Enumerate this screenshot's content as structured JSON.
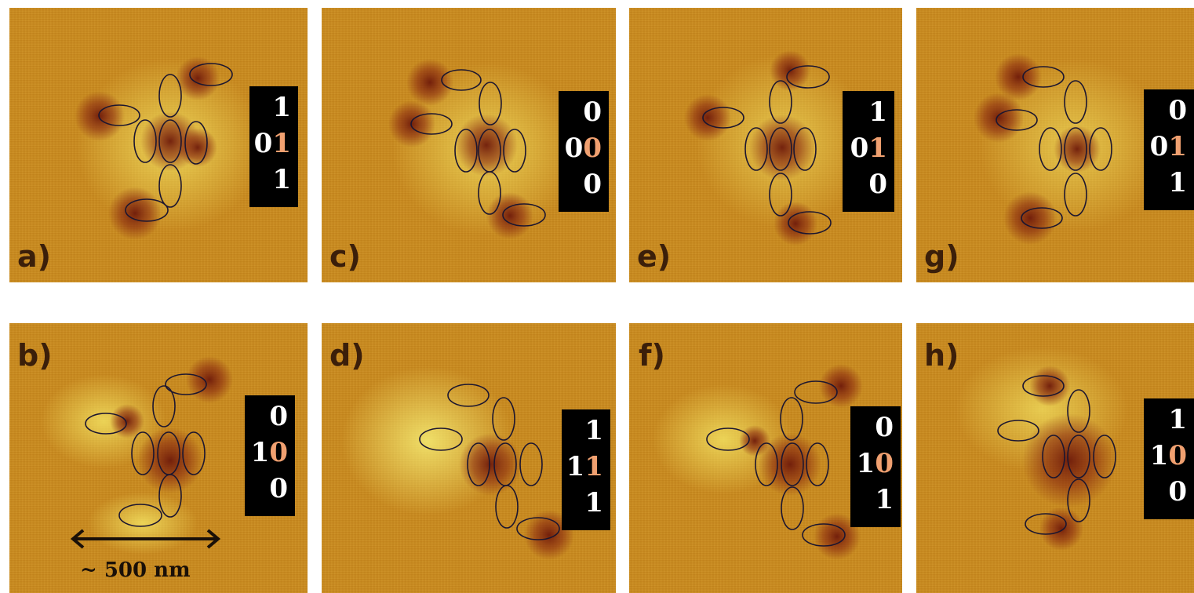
{
  "panels": [
    {
      "id": "a",
      "label": "a)",
      "bits": [
        "1",
        "01",
        "1"
      ],
      "hl": [
        "",
        "1",
        ""
      ]
    },
    {
      "id": "b",
      "label": "b)",
      "bits": [
        "0",
        "10",
        "0"
      ],
      "hl": [
        "",
        "0",
        ""
      ]
    },
    {
      "id": "c",
      "label": "c)",
      "bits": [
        "0",
        "00",
        "0"
      ],
      "hl": [
        "",
        "0",
        ""
      ]
    },
    {
      "id": "d",
      "label": "d)",
      "bits": [
        "1",
        "11",
        "1"
      ],
      "hl": [
        "",
        "1",
        ""
      ]
    },
    {
      "id": "e",
      "label": "e)",
      "bits": [
        "1",
        "01",
        "0"
      ],
      "hl": [
        "",
        "1",
        ""
      ]
    },
    {
      "id": "f",
      "label": "f)",
      "bits": [
        "0",
        "10",
        "1"
      ],
      "hl": [
        "",
        "0",
        ""
      ]
    },
    {
      "id": "g",
      "label": "g)",
      "bits": [
        "0",
        "01",
        "1"
      ],
      "hl": [
        "",
        "1",
        ""
      ]
    },
    {
      "id": "h",
      "label": "h)",
      "bits": [
        "1",
        "10",
        "0"
      ],
      "hl": [
        "",
        "0",
        ""
      ]
    }
  ],
  "scale_bar": {
    "label": "~ 500 nm"
  },
  "colors": {
    "substrate": "#c98a1e",
    "dark_spot": "#6e1a0a",
    "bright_halo": "#f2e060",
    "highlight_bit": "#f0a070",
    "label_text": "#3b1f0a"
  }
}
